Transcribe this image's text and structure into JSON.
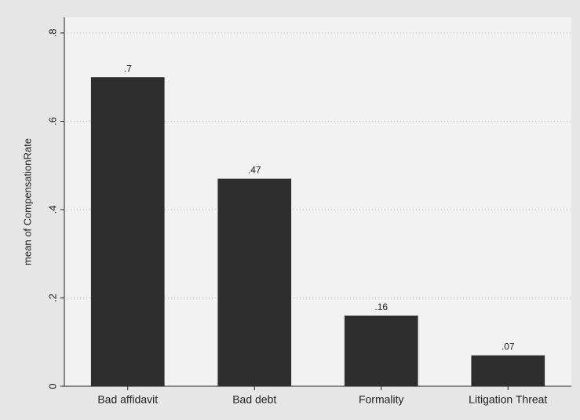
{
  "chart_data": {
    "type": "bar",
    "y_label": "mean of CompensationRate",
    "categories": [
      "Bad affidavit",
      "Bad debt",
      "Formality",
      "Litigation Threat"
    ],
    "values": [
      0.7,
      0.47,
      0.16,
      0.07
    ],
    "value_labels": [
      ".7",
      ".47",
      ".16",
      ".07"
    ],
    "color": "#2e2e2e",
    "ylim": [
      0,
      0.8
    ],
    "yticks": [
      0,
      {
        "value": 0.2,
        "label": ".2"
      },
      {
        "value": 0.4,
        "label": ".4"
      },
      {
        "value": 0.6,
        "label": ".6"
      },
      {
        "value": 0.8,
        "label": ".8"
      }
    ],
    "grid": true
  }
}
